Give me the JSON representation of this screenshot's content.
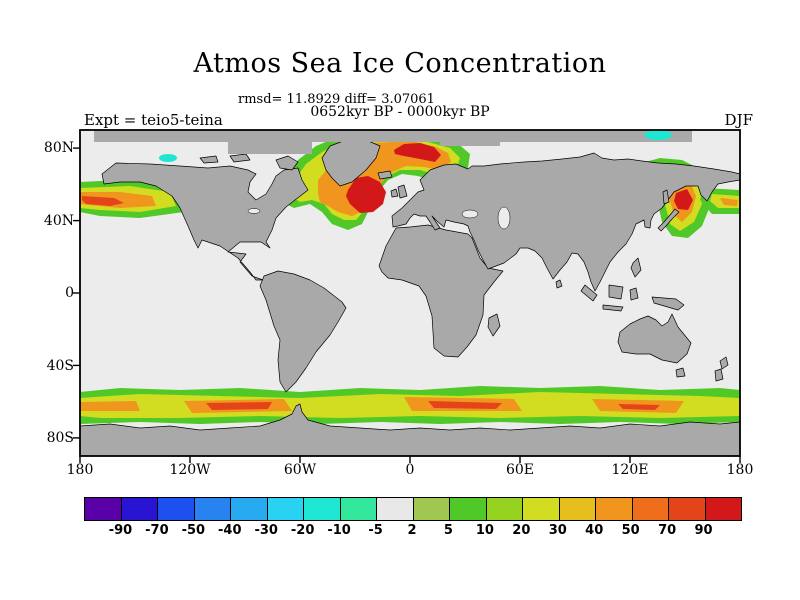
{
  "header": {
    "title": "Atmos Sea Ice Concentration",
    "stats_line": "rmsd= 11.8929 diff= 3.07061",
    "period_line": "0652kyr BP - 0000kyr BP",
    "expt_label": "Expt = teio5-teina",
    "season_label": "DJF"
  },
  "axes": {
    "lat_ticks": [
      "80N",
      "40N",
      "0",
      "40S",
      "80S"
    ],
    "lon_ticks": [
      "180",
      "120W",
      "60W",
      "0",
      "60E",
      "120E",
      "180"
    ]
  },
  "colorbar": {
    "boundary_labels": [
      "-90",
      "-70",
      "-50",
      "-40",
      "-30",
      "-20",
      "-10",
      "-5",
      "2",
      "5",
      "10",
      "20",
      "30",
      "40",
      "50",
      "70",
      "90"
    ],
    "cell_colors": [
      "#5a00a8",
      "#2814d2",
      "#1e50f0",
      "#2882f0",
      "#28aaf0",
      "#28d2f0",
      "#1ee6d2",
      "#32e69b",
      "#e8e8e8",
      "#a0c850",
      "#50c828",
      "#96d220",
      "#d2dc20",
      "#e6be1e",
      "#f0961e",
      "#ee6e1c",
      "#e4441a",
      "#d21818"
    ]
  },
  "map_colors": {
    "land": "#a9a9a9",
    "ocean": "#ececec",
    "coastline": "#000000"
  },
  "chart_data": {
    "type": "heatmap",
    "title": "Atmos Sea Ice Concentration",
    "subtitle": "0652kyr BP - 0000kyr BP",
    "season": "DJF",
    "experiment": "teio5-teina",
    "rmsd": 11.8929,
    "diff": 3.07061,
    "variable": "sea ice concentration difference (%)",
    "projection": "equirectangular world map",
    "x_axis": {
      "ticks": [
        "180",
        "120W",
        "60W",
        "0",
        "60E",
        "120E",
        "180"
      ],
      "range_deg": [
        -180,
        180
      ]
    },
    "y_axis": {
      "ticks": [
        "80N",
        "40N",
        "0",
        "40S",
        "80S"
      ],
      "range_deg": [
        -90,
        90
      ]
    },
    "contour_levels": [
      -90,
      -70,
      -50,
      -40,
      -30,
      -20,
      -10,
      -5,
      2,
      5,
      10,
      20,
      30,
      40,
      50,
      70,
      90
    ],
    "positive_anomaly_regions": [
      {
        "region": "North Pacific / Bering Sea at western map edge",
        "approx_lat": "45N-60N",
        "peak_value": "50-70"
      },
      {
        "region": "Labrador Sea / Davis Strait southwest of Greenland",
        "approx_lat": "50N-65N",
        "peak_value": "70-90"
      },
      {
        "region": "Norwegian-Greenland Sea near Iceland",
        "approx_lat": "62N-75N",
        "peak_value": "70-90"
      },
      {
        "region": "Sea of Okhotsk / NW Pacific east of Japan",
        "approx_lat": "38N-60N",
        "peak_value": "70-90"
      },
      {
        "region": "Circumpolar Southern Ocean band",
        "approx_lat": "55S-68S",
        "peak_value": "40-70"
      }
    ],
    "negative_anomaly_regions": [
      {
        "region": "Small Arctic coastal patches (cyan/teal)",
        "approx_lat": "70N-85N",
        "peak_value": "-10 to -30"
      }
    ]
  }
}
